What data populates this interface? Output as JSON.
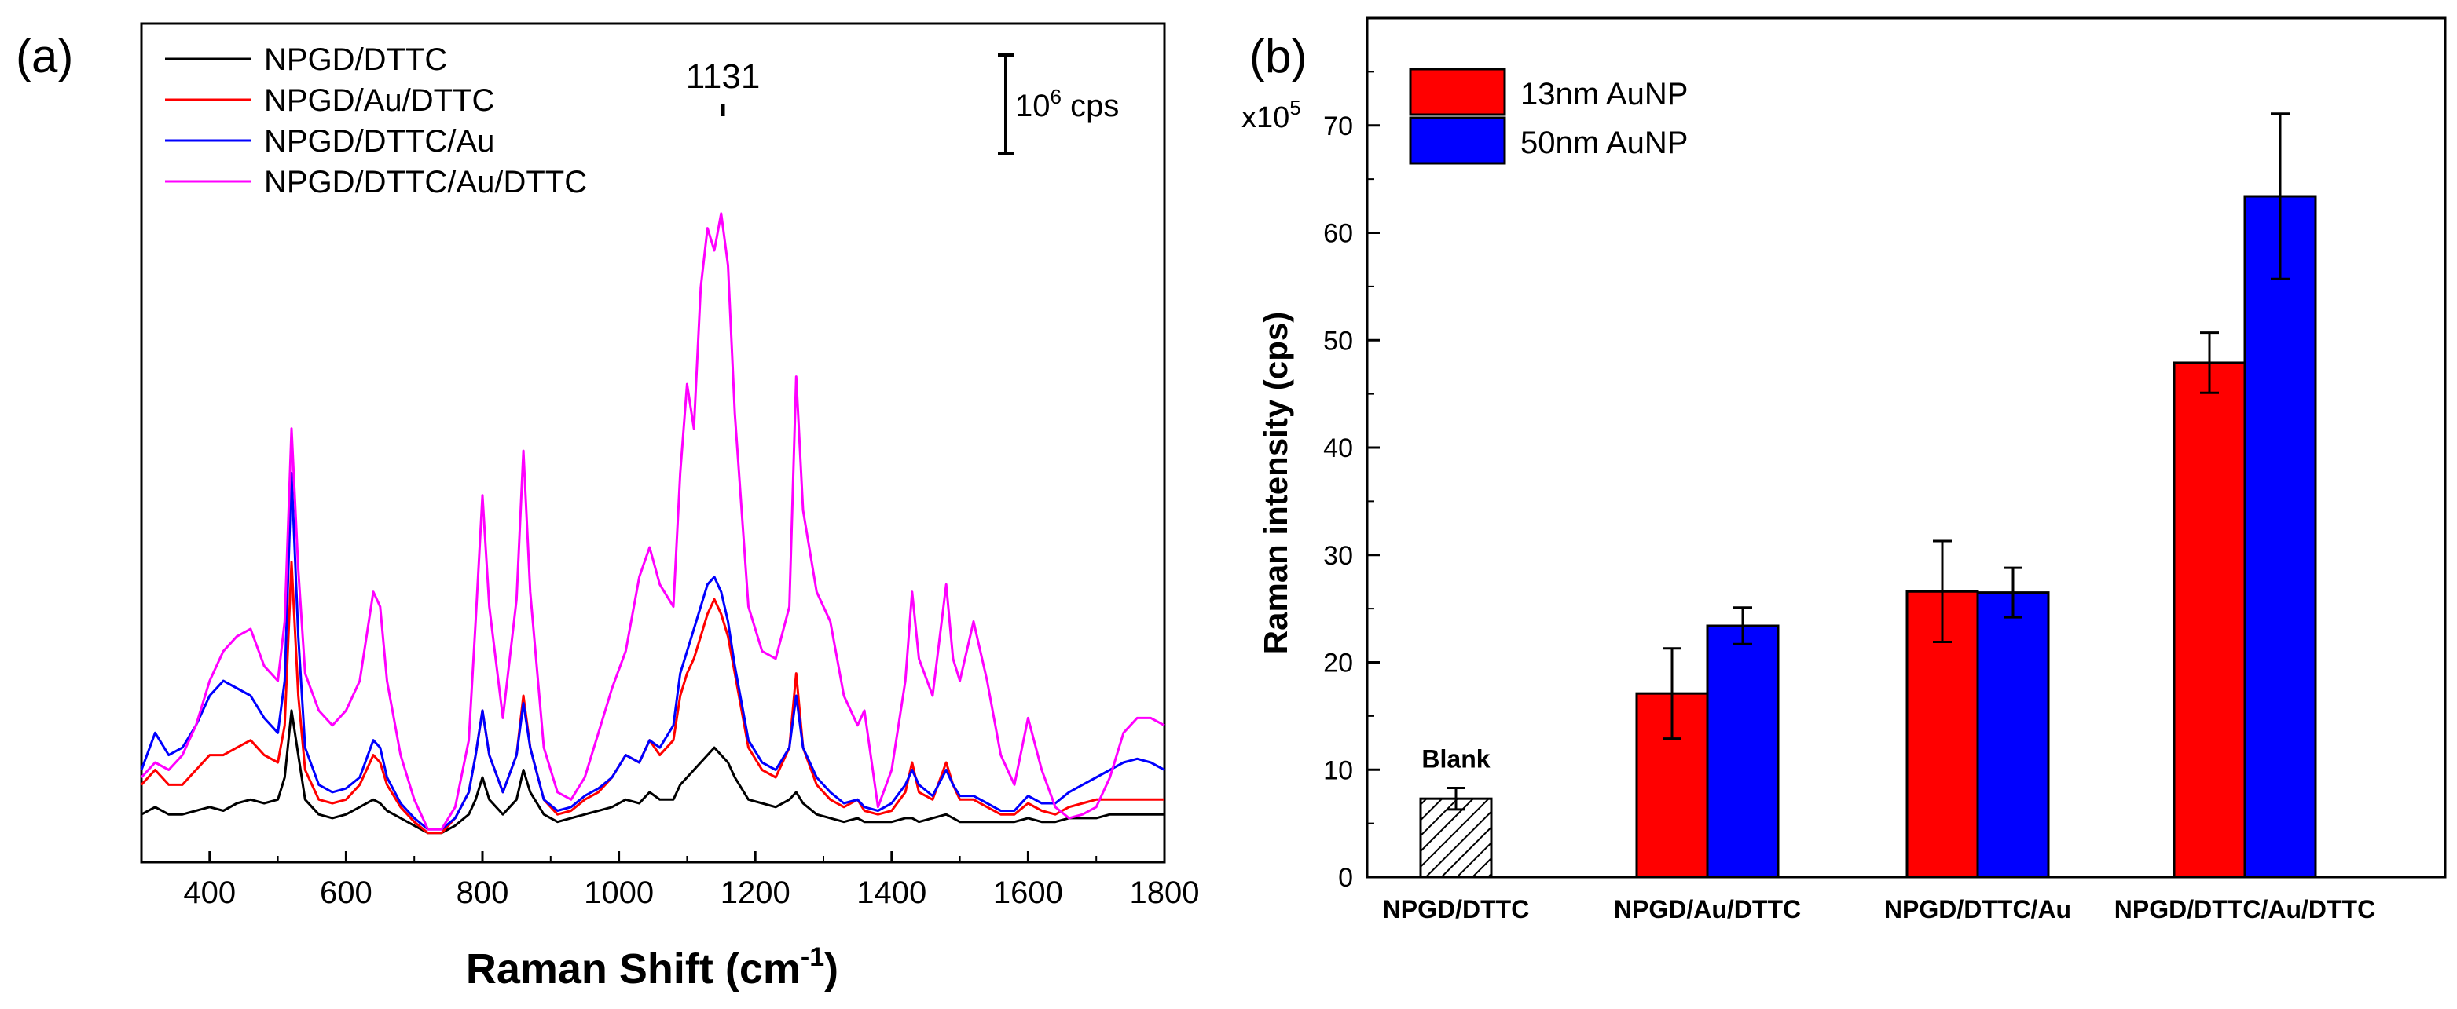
{
  "panel_a": {
    "panel_label": "(a)",
    "peak_label": "1131",
    "scale_bar_label_base": "10",
    "scale_bar_label_exp": "6",
    "scale_bar_label_unit": " cps",
    "xlabel_main": "Raman Shift (cm",
    "xlabel_exp": "-1",
    "xlabel_close": ")"
  },
  "panel_b": {
    "panel_label": "(b)",
    "ylabel": "Raman intensity (cps)",
    "multiplier_base": "x10",
    "multiplier_exp": "5",
    "blank_label": "Blank"
  },
  "colors": {
    "black": "#000000",
    "red": "#ff0000",
    "blue": "#0000ff",
    "magenta": "#ff00ff"
  },
  "chart_data": [
    {
      "type": "line",
      "title": "(a)",
      "xlabel": "Raman Shift (cm-1)",
      "ylabel": "",
      "xlim": [
        300,
        1800
      ],
      "ylim": [
        0,
        10
      ],
      "xticks": [
        400,
        600,
        800,
        1000,
        1200,
        1400,
        1600,
        1800
      ],
      "annotations": [
        "1131",
        "10^6 cps"
      ],
      "x": [
        300,
        320,
        340,
        360,
        380,
        400,
        420,
        440,
        460,
        480,
        500,
        510,
        520,
        530,
        540,
        560,
        580,
        600,
        620,
        640,
        650,
        660,
        680,
        700,
        720,
        740,
        760,
        780,
        790,
        800,
        810,
        830,
        850,
        860,
        870,
        890,
        910,
        930,
        950,
        970,
        990,
        1010,
        1030,
        1045,
        1060,
        1080,
        1090,
        1100,
        1110,
        1120,
        1130,
        1140,
        1150,
        1160,
        1170,
        1190,
        1210,
        1230,
        1250,
        1260,
        1270,
        1290,
        1310,
        1330,
        1350,
        1360,
        1380,
        1400,
        1420,
        1430,
        1440,
        1460,
        1480,
        1490,
        1500,
        1520,
        1540,
        1560,
        1580,
        1600,
        1620,
        1640,
        1660,
        1680,
        1700,
        1720,
        1740,
        1760,
        1780,
        1800
      ],
      "series": [
        {
          "name": "NPGD/DTTC",
          "color": "#000000",
          "values": [
            0.4,
            0.5,
            0.4,
            0.4,
            0.45,
            0.5,
            0.45,
            0.55,
            0.6,
            0.55,
            0.6,
            0.9,
            1.8,
            1.2,
            0.6,
            0.4,
            0.35,
            0.4,
            0.5,
            0.6,
            0.55,
            0.45,
            0.35,
            0.25,
            0.15,
            0.15,
            0.25,
            0.4,
            0.6,
            0.9,
            0.6,
            0.4,
            0.6,
            1.0,
            0.7,
            0.4,
            0.3,
            0.35,
            0.4,
            0.45,
            0.5,
            0.6,
            0.55,
            0.7,
            0.6,
            0.6,
            0.8,
            0.9,
            1.0,
            1.1,
            1.2,
            1.3,
            1.2,
            1.1,
            0.9,
            0.6,
            0.55,
            0.5,
            0.6,
            0.7,
            0.55,
            0.4,
            0.35,
            0.3,
            0.35,
            0.3,
            0.3,
            0.3,
            0.35,
            0.35,
            0.3,
            0.35,
            0.4,
            0.35,
            0.3,
            0.3,
            0.3,
            0.3,
            0.3,
            0.35,
            0.3,
            0.3,
            0.35,
            0.35,
            0.35,
            0.4,
            0.4,
            0.4,
            0.4,
            0.4
          ]
        },
        {
          "name": "NPGD/Au/DTTC",
          "color": "#ff0000",
          "values": [
            0.8,
            1.0,
            0.8,
            0.8,
            1.0,
            1.2,
            1.2,
            1.3,
            1.4,
            1.2,
            1.1,
            1.6,
            3.8,
            2.0,
            1.0,
            0.6,
            0.55,
            0.6,
            0.8,
            1.2,
            1.1,
            0.8,
            0.5,
            0.3,
            0.15,
            0.15,
            0.35,
            0.7,
            1.2,
            1.8,
            1.2,
            0.7,
            1.2,
            2.0,
            1.3,
            0.6,
            0.4,
            0.45,
            0.6,
            0.7,
            0.9,
            1.2,
            1.1,
            1.4,
            1.2,
            1.4,
            2.0,
            2.3,
            2.5,
            2.8,
            3.1,
            3.3,
            3.1,
            2.8,
            2.3,
            1.3,
            1.0,
            0.9,
            1.3,
            2.3,
            1.3,
            0.8,
            0.6,
            0.5,
            0.6,
            0.45,
            0.4,
            0.45,
            0.7,
            1.1,
            0.7,
            0.6,
            1.1,
            0.8,
            0.6,
            0.6,
            0.5,
            0.4,
            0.4,
            0.55,
            0.45,
            0.4,
            0.5,
            0.55,
            0.6,
            0.6,
            0.6,
            0.6,
            0.6,
            0.6
          ]
        },
        {
          "name": "NPGD/DTTC/Au",
          "color": "#0000ff",
          "values": [
            1.0,
            1.5,
            1.2,
            1.3,
            1.6,
            2.0,
            2.2,
            2.1,
            2.0,
            1.7,
            1.5,
            2.2,
            5.0,
            2.8,
            1.3,
            0.8,
            0.7,
            0.75,
            0.9,
            1.4,
            1.3,
            0.9,
            0.55,
            0.35,
            0.2,
            0.2,
            0.35,
            0.7,
            1.2,
            1.8,
            1.2,
            0.7,
            1.2,
            1.9,
            1.3,
            0.6,
            0.45,
            0.5,
            0.65,
            0.75,
            0.9,
            1.2,
            1.1,
            1.4,
            1.3,
            1.6,
            2.3,
            2.6,
            2.9,
            3.2,
            3.5,
            3.6,
            3.4,
            3.0,
            2.4,
            1.4,
            1.1,
            1.0,
            1.3,
            2.0,
            1.3,
            0.9,
            0.7,
            0.55,
            0.6,
            0.5,
            0.45,
            0.55,
            0.8,
            1.0,
            0.8,
            0.65,
            1.0,
            0.8,
            0.65,
            0.65,
            0.55,
            0.45,
            0.45,
            0.65,
            0.55,
            0.55,
            0.7,
            0.8,
            0.9,
            1.0,
            1.1,
            1.15,
            1.1,
            1.0
          ]
        },
        {
          "name": "NPGD/DTTC/Au/DTTC",
          "color": "#ff00ff",
          "values": [
            0.9,
            1.1,
            1.0,
            1.2,
            1.6,
            2.2,
            2.6,
            2.8,
            2.9,
            2.4,
            2.2,
            3.0,
            5.6,
            3.7,
            2.3,
            1.8,
            1.6,
            1.8,
            2.2,
            3.4,
            3.2,
            2.2,
            1.2,
            0.6,
            0.2,
            0.2,
            0.5,
            1.4,
            3.0,
            4.7,
            3.2,
            1.7,
            3.3,
            5.3,
            3.4,
            1.3,
            0.7,
            0.6,
            0.9,
            1.5,
            2.1,
            2.6,
            3.6,
            4.0,
            3.5,
            3.2,
            5.0,
            6.2,
            5.6,
            7.5,
            8.3,
            8.0,
            8.5,
            7.8,
            5.8,
            3.2,
            2.6,
            2.5,
            3.2,
            6.3,
            4.5,
            3.4,
            3.0,
            2.0,
            1.6,
            1.8,
            0.5,
            1.0,
            2.2,
            3.4,
            2.5,
            2.0,
            3.5,
            2.5,
            2.2,
            3.0,
            2.2,
            1.2,
            0.8,
            1.7,
            1.0,
            0.5,
            0.35,
            0.4,
            0.5,
            0.9,
            1.5,
            1.7,
            1.7,
            1.6
          ]
        }
      ]
    },
    {
      "type": "bar",
      "title": "(b)",
      "xlabel": "",
      "ylabel": "Raman intensity (cps)",
      "ylim": [
        0,
        80
      ],
      "yticks": [
        0,
        10,
        20,
        30,
        40,
        50,
        60,
        70
      ],
      "multiplier": "x10^5",
      "categories": [
        "NPGD/DTTC",
        "NPGD/Au/DTTC",
        "NPGD/DTTC/Au",
        "NPGD/DTTC/Au/DTTC"
      ],
      "blank": {
        "category": "NPGD/DTTC",
        "label": "Blank",
        "value": 7.3,
        "error": 1.0
      },
      "series": [
        {
          "name": "13nm AuNP",
          "color": "#ff0000",
          "values": [
            null,
            17.1,
            26.6,
            47.9
          ],
          "errors": [
            null,
            4.2,
            4.7,
            2.8
          ]
        },
        {
          "name": "50nm AuNP",
          "color": "#0000ff",
          "values": [
            null,
            23.4,
            26.5,
            63.4
          ],
          "errors": [
            null,
            1.7,
            2.3,
            7.7
          ]
        }
      ]
    }
  ]
}
